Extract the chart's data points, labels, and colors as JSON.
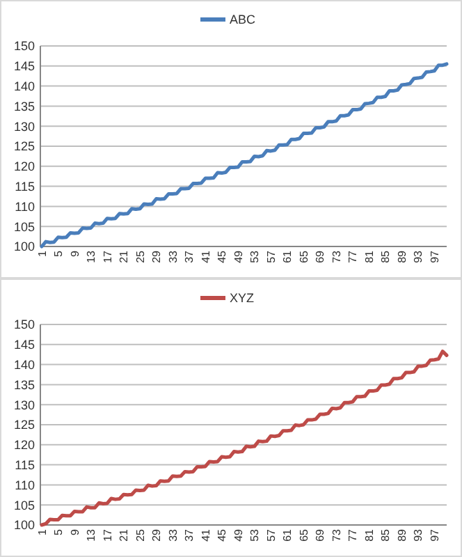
{
  "chart_data": [
    {
      "type": "line",
      "categories": [
        "1",
        null,
        null,
        null,
        "5",
        null,
        null,
        null,
        "9",
        null,
        null,
        null,
        "13",
        null,
        null,
        null,
        "17",
        null,
        null,
        null,
        "21",
        null,
        null,
        null,
        "25",
        null,
        null,
        null,
        "29",
        null,
        null,
        null,
        "33",
        null,
        null,
        null,
        "37",
        null,
        null,
        null,
        "41",
        null,
        null,
        null,
        "45",
        null,
        null,
        null,
        "49",
        null,
        null,
        null,
        "53",
        null,
        null,
        null,
        "57",
        null,
        null,
        null,
        "61",
        null,
        null,
        null,
        "65",
        null,
        null,
        null,
        "69",
        null,
        null,
        null,
        "73",
        null,
        null,
        null,
        "77",
        null,
        null,
        null,
        "81",
        null,
        null,
        null,
        "85",
        null,
        null,
        null,
        "89",
        null,
        null,
        null,
        "93",
        null,
        null,
        null,
        "97",
        null,
        null,
        null
      ],
      "series": [
        {
          "name": "ABC",
          "color": "#4a7ebb",
          "values": [
            100.0,
            101.2,
            101.0,
            101.1,
            102.3,
            102.2,
            102.3,
            103.4,
            103.3,
            103.4,
            104.6,
            104.5,
            104.6,
            105.8,
            105.7,
            105.8,
            107.0,
            106.9,
            107.0,
            108.2,
            108.1,
            108.2,
            109.4,
            109.3,
            109.4,
            110.6,
            110.5,
            110.6,
            111.9,
            111.8,
            111.9,
            113.1,
            113.1,
            113.2,
            114.4,
            114.4,
            114.5,
            115.7,
            115.7,
            115.8,
            117.0,
            117.0,
            117.1,
            118.4,
            118.3,
            118.5,
            119.7,
            119.7,
            119.8,
            121.1,
            121.1,
            121.2,
            122.5,
            122.4,
            122.6,
            123.9,
            123.8,
            124.0,
            125.3,
            125.3,
            125.4,
            126.7,
            126.7,
            126.9,
            128.2,
            128.2,
            128.3,
            129.6,
            129.6,
            129.8,
            131.1,
            131.1,
            131.3,
            132.6,
            132.6,
            132.8,
            134.1,
            134.1,
            134.3,
            135.6,
            135.7,
            135.9,
            137.2,
            137.2,
            137.4,
            138.8,
            138.8,
            139.0,
            140.3,
            140.4,
            140.6,
            141.9,
            142.0,
            142.2,
            143.5,
            143.6,
            143.8,
            145.2,
            145.2,
            145.5
          ]
        }
      ],
      "ylim": [
        100,
        150
      ],
      "yticks": [
        100,
        105,
        110,
        115,
        120,
        125,
        130,
        135,
        140,
        145,
        150
      ],
      "grid": "y",
      "legend": "top",
      "marker": "none",
      "line_style": "solid"
    },
    {
      "type": "line",
      "categories": [
        "1",
        null,
        null,
        null,
        "5",
        null,
        null,
        null,
        "9",
        null,
        null,
        null,
        "13",
        null,
        null,
        null,
        "17",
        null,
        null,
        null,
        "21",
        null,
        null,
        null,
        "25",
        null,
        null,
        null,
        "29",
        null,
        null,
        null,
        "33",
        null,
        null,
        null,
        "37",
        null,
        null,
        null,
        "41",
        null,
        null,
        null,
        "45",
        null,
        null,
        null,
        "49",
        null,
        null,
        null,
        "53",
        null,
        null,
        null,
        "57",
        null,
        null,
        null,
        "61",
        null,
        null,
        null,
        "65",
        null,
        null,
        null,
        "69",
        null,
        null,
        null,
        "73",
        null,
        null,
        null,
        "77",
        null,
        null,
        null,
        "81",
        null,
        null,
        null,
        "85",
        null,
        null,
        null,
        "89",
        null,
        null,
        null,
        "93",
        null,
        null,
        null,
        "97",
        null,
        null,
        null
      ],
      "series": [
        {
          "name": "XYZ",
          "color": "#be4b48",
          "values": [
            100.0,
            100.3,
            101.4,
            101.3,
            101.3,
            102.4,
            102.3,
            102.3,
            103.4,
            103.3,
            103.3,
            104.5,
            104.3,
            104.3,
            105.5,
            105.3,
            105.4,
            106.6,
            106.4,
            106.5,
            107.6,
            107.5,
            107.6,
            108.7,
            108.6,
            108.7,
            109.9,
            109.7,
            109.8,
            111.0,
            110.9,
            111.0,
            112.2,
            112.1,
            112.2,
            113.3,
            113.2,
            113.3,
            114.5,
            114.5,
            114.6,
            115.8,
            115.7,
            115.8,
            117.0,
            116.9,
            117.0,
            118.3,
            118.2,
            118.3,
            119.6,
            119.5,
            119.6,
            120.9,
            120.8,
            120.9,
            122.2,
            122.1,
            122.3,
            123.5,
            123.5,
            123.6,
            124.9,
            124.8,
            125.0,
            126.2,
            126.2,
            126.4,
            127.6,
            127.6,
            127.8,
            129.1,
            129.0,
            129.2,
            130.5,
            130.5,
            130.7,
            132.0,
            132.0,
            132.1,
            133.4,
            133.4,
            133.6,
            134.9,
            134.9,
            135.1,
            136.5,
            136.5,
            136.7,
            138.0,
            138.0,
            138.2,
            139.6,
            139.6,
            139.8,
            141.1,
            141.2,
            141.4,
            143.3,
            142.3
          ]
        }
      ],
      "ylim": [
        100,
        150
      ],
      "yticks": [
        100,
        105,
        110,
        115,
        120,
        125,
        130,
        135,
        140,
        145,
        150
      ],
      "grid": "y",
      "legend": "top",
      "marker": "none",
      "line_style": "solid"
    }
  ]
}
